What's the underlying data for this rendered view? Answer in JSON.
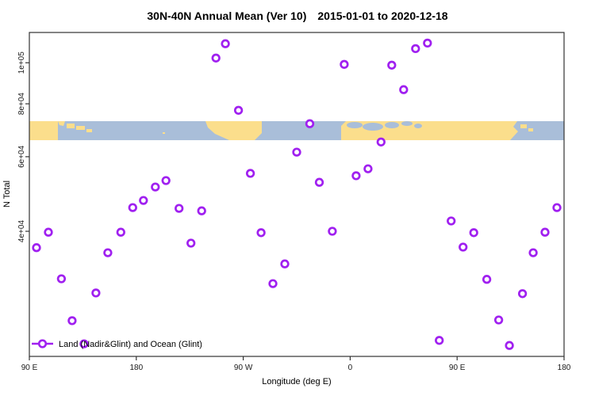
{
  "title": {
    "main": "30N-40N Annual Mean (Ver 10)",
    "dates": "2015-01-01 to 2020-12-18"
  },
  "colors": {
    "series": "#A020F0",
    "ocean": "#A9BED9",
    "land": "#FBDE8C",
    "axis": "#333333",
    "text": "#000000"
  },
  "legend": {
    "label": "Land (Nadir&Glint) and Ocean (Glint)"
  },
  "chart_data": {
    "type": "scatter",
    "title": "30N-40N Annual Mean (Ver 10)   2015-01-01 to 2020-12-18",
    "xlabel": "Longitude (deg E)",
    "ylabel": "N Total",
    "y_scale": "log",
    "grid": false,
    "legend_position": "bottom-left",
    "x_axis": {
      "range": [
        90,
        540
      ],
      "ticks": [
        {
          "label": "90 E",
          "lon": 90
        },
        {
          "label": "180",
          "lon": 180
        },
        {
          "label": "90 W",
          "lon": 270
        },
        {
          "label": "0",
          "lon": 360
        },
        {
          "label": "90 E",
          "lon": 450
        },
        {
          "label": "180",
          "lon": 540
        }
      ]
    },
    "y_axis": {
      "range": [
        20260,
        117900
      ],
      "ticks": [
        {
          "label": "4e+04",
          "value": 40000
        },
        {
          "label": "6e+04",
          "value": 60000
        },
        {
          "label": "8e+04",
          "value": 80000
        },
        {
          "label": "1e+05",
          "value": 100000
        }
      ]
    },
    "map_band": {
      "description": "30N-40N latitude world-map strip (land=yellow, ocean=blue)",
      "value_top": 72800,
      "value_bottom": 65600
    },
    "points": [
      {
        "lon": 96,
        "value": 36600
      },
      {
        "lon": 106,
        "value": 39800
      },
      {
        "lon": 117,
        "value": 30900
      },
      {
        "lon": 126,
        "value": 24600
      },
      {
        "lon": 136,
        "value": 21700
      },
      {
        "lon": 146,
        "value": 28600
      },
      {
        "lon": 156,
        "value": 35600
      },
      {
        "lon": 167,
        "value": 39800
      },
      {
        "lon": 177,
        "value": 45500
      },
      {
        "lon": 186,
        "value": 47300
      },
      {
        "lon": 196,
        "value": 50900
      },
      {
        "lon": 205,
        "value": 52700
      },
      {
        "lon": 216,
        "value": 45300
      },
      {
        "lon": 226,
        "value": 37500
      },
      {
        "lon": 235,
        "value": 44700
      },
      {
        "lon": 247,
        "value": 102600
      },
      {
        "lon": 255,
        "value": 110900
      },
      {
        "lon": 266,
        "value": 77200
      },
      {
        "lon": 276,
        "value": 54800
      },
      {
        "lon": 285,
        "value": 39700
      },
      {
        "lon": 295,
        "value": 30100
      },
      {
        "lon": 305,
        "value": 33500
      },
      {
        "lon": 315,
        "value": 61500
      },
      {
        "lon": 326,
        "value": 71800
      },
      {
        "lon": 334,
        "value": 52200
      },
      {
        "lon": 345,
        "value": 40000
      },
      {
        "lon": 355,
        "value": 99100
      },
      {
        "lon": 365,
        "value": 54100
      },
      {
        "lon": 375,
        "value": 56200
      },
      {
        "lon": 386,
        "value": 65000
      },
      {
        "lon": 395,
        "value": 98700
      },
      {
        "lon": 405,
        "value": 86400
      },
      {
        "lon": 415,
        "value": 108000
      },
      {
        "lon": 425,
        "value": 111300
      },
      {
        "lon": 435,
        "value": 22100
      },
      {
        "lon": 445,
        "value": 42300
      },
      {
        "lon": 455,
        "value": 36700
      },
      {
        "lon": 464,
        "value": 39700
      },
      {
        "lon": 475,
        "value": 30800
      },
      {
        "lon": 485,
        "value": 24700
      },
      {
        "lon": 494,
        "value": 21500
      },
      {
        "lon": 505,
        "value": 28500
      },
      {
        "lon": 514,
        "value": 35600
      },
      {
        "lon": 524,
        "value": 39800
      },
      {
        "lon": 534,
        "value": 45500
      }
    ]
  }
}
